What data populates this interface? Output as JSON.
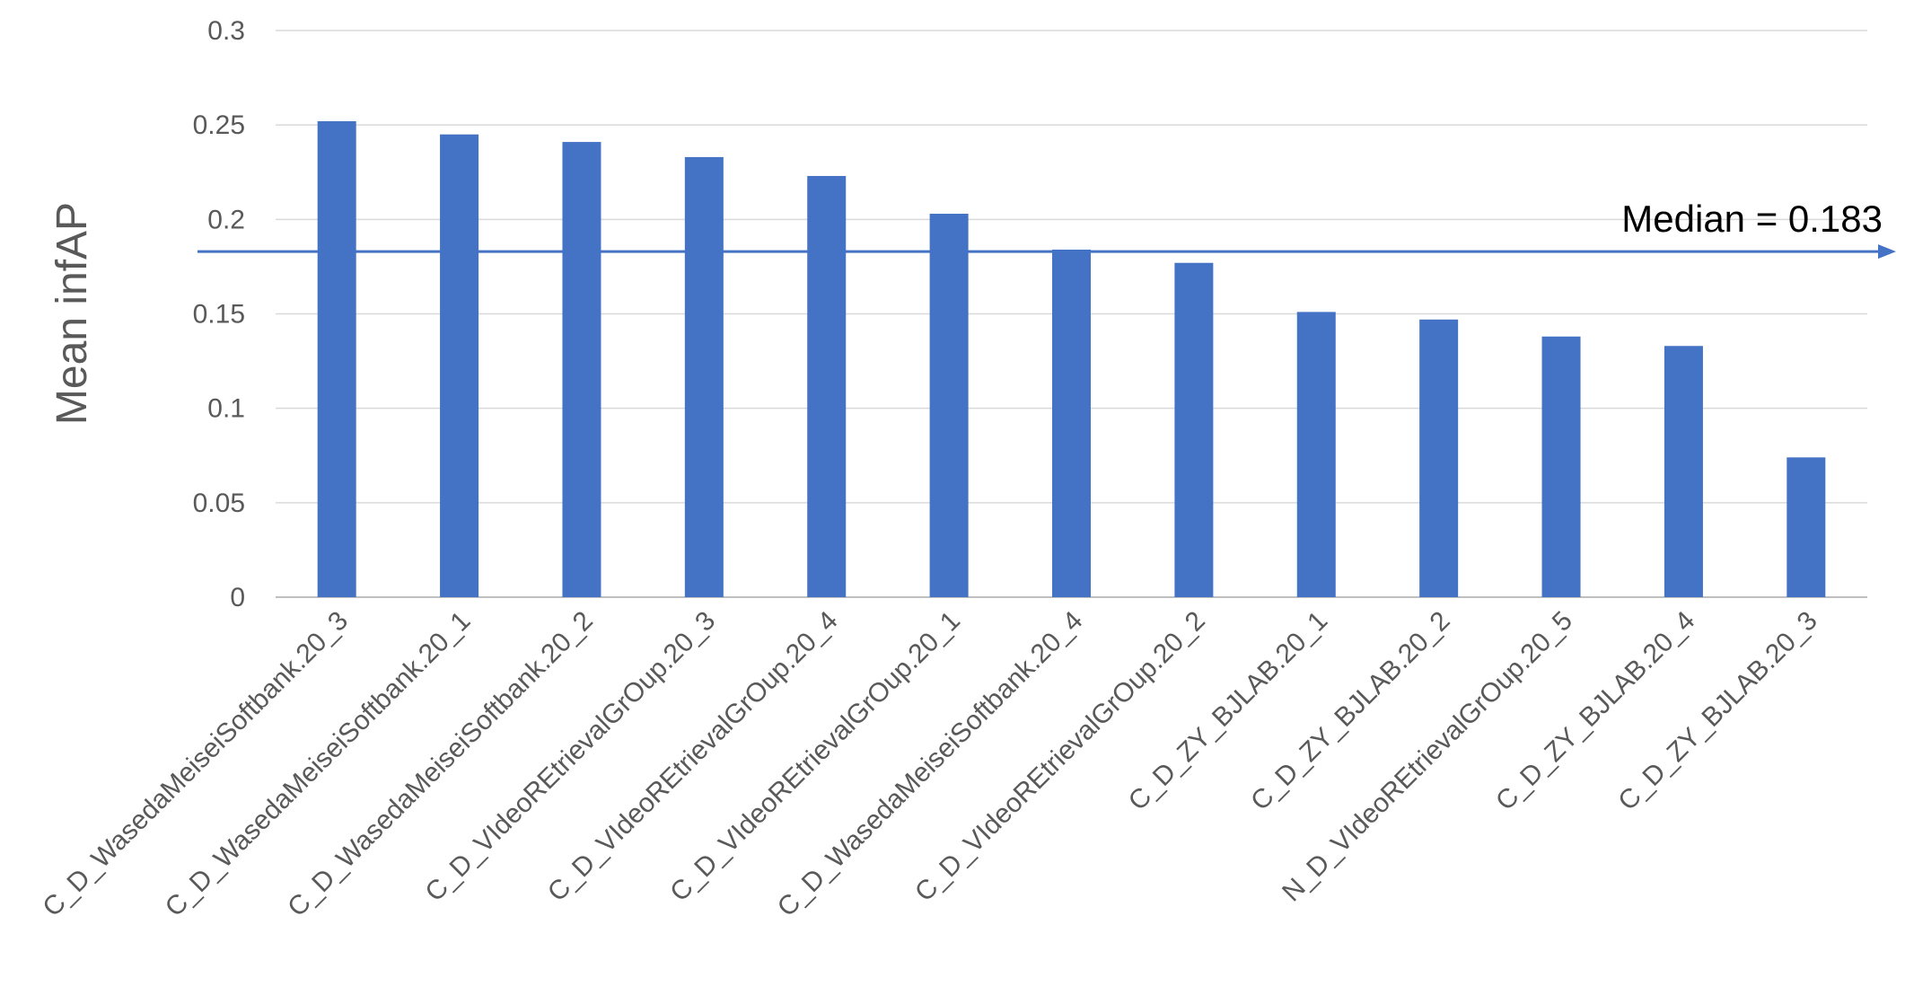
{
  "chart_data": {
    "type": "bar",
    "title": "",
    "xlabel": "",
    "ylabel": "Mean infAP",
    "ylim": [
      0,
      0.3
    ],
    "yticks": [
      "0",
      "0.05",
      "0.1",
      "0.15",
      "0.2",
      "0.25",
      "0.3"
    ],
    "grid": true,
    "legend": "none",
    "bar_color": "#4472C4",
    "categories": [
      "C_D_WasedaMeiseiSoftbank.20_3",
      "C_D_WasedaMeiseiSoftbank.20_1",
      "C_D_WasedaMeiseiSoftbank.20_2",
      "C_D_VIdeoREtrievalGrOup.20_3",
      "C_D_VIdeoREtrievalGrOup.20_4",
      "C_D_VIdeoREtrievalGrOup.20_1",
      "C_D_WasedaMeiseiSoftbank.20_4",
      "C_D_VIdeoREtrievalGrOup.20_2",
      "C_D_ZY_BJLAB.20_1",
      "C_D_ZY_BJLAB.20_2",
      "N_D_VIdeoREtrievalGrOup.20_5",
      "C_D_ZY_BJLAB.20_4",
      "C_D_ZY_BJLAB.20_3"
    ],
    "values": [
      0.252,
      0.245,
      0.241,
      0.233,
      0.223,
      0.203,
      0.184,
      0.177,
      0.151,
      0.147,
      0.138,
      0.133,
      0.074
    ],
    "reference_line": {
      "value": 0.183,
      "label": "Median = 0.183",
      "color": "#4472C4"
    }
  }
}
